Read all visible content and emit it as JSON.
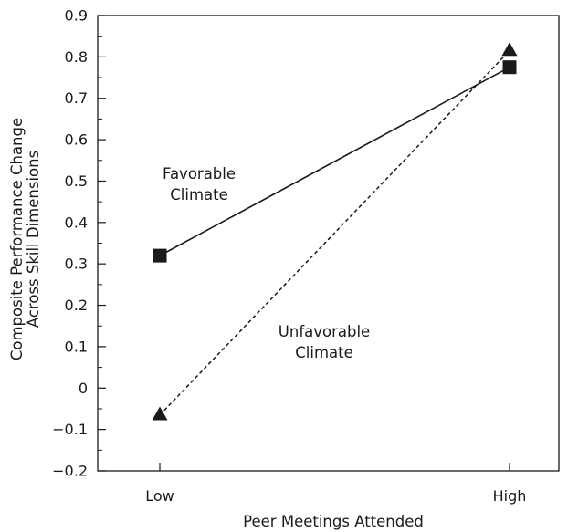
{
  "chart_data": {
    "type": "line",
    "title": "",
    "xlabel": "Peer Meetings Attended",
    "ylabel_lines": [
      "Composite Performance Change",
      "Across Skill Dimensions"
    ],
    "categories": [
      "Low",
      "High"
    ],
    "ylim": [
      -0.2,
      0.9
    ],
    "yticks": [
      -0.2,
      -0.1,
      0,
      0.1,
      0.2,
      0.3,
      0.4,
      0.5,
      0.6,
      0.7,
      0.8,
      0.9
    ],
    "ytick_labels": [
      "−0.2",
      "−0.1",
      "0",
      "0.1",
      "0.2",
      "0.3",
      "0.4",
      "0.5",
      "0.6",
      "0.7",
      "0.8",
      "0.9"
    ],
    "grid": false,
    "legend": "none",
    "series": [
      {
        "label_lines": [
          "Favorable",
          "Climate"
        ],
        "values": [
          0.32,
          0.775
        ],
        "marker": "square",
        "line_style": "solid",
        "color": "#1a1a1a"
      },
      {
        "label_lines": [
          "Unfavorable",
          "Climate"
        ],
        "values": [
          -0.065,
          0.815
        ],
        "marker": "triangle",
        "line_style": "dashed",
        "color": "#1a1a1a"
      }
    ]
  }
}
